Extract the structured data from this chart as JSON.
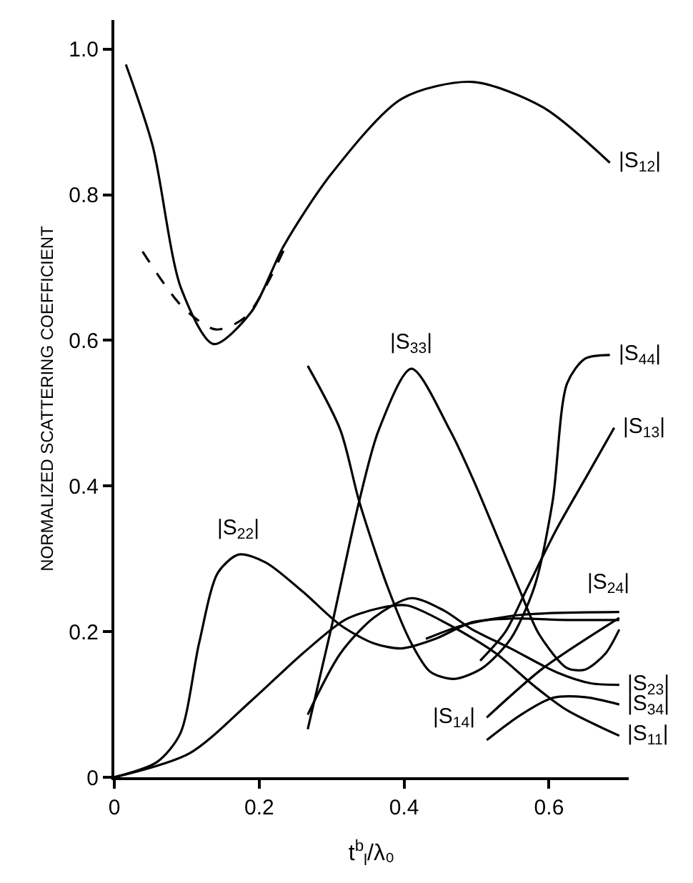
{
  "chart_data": {
    "type": "line",
    "xlabel": "t$^{b}$$_{l}$/λ₀",
    "ylabel": "NORMALIZED SCATTERING COEFFICIENT",
    "xlim": [
      0,
      0.71
    ],
    "ylim": [
      0,
      1.04
    ],
    "xticks": [
      0,
      0.2,
      0.4,
      0.6
    ],
    "yticks": [
      0,
      0.2,
      0.4,
      0.6,
      0.8,
      {
        "value": 1.0,
        "label": "1.0"
      }
    ],
    "legend": false,
    "marker": "none",
    "series": [
      {
        "name": "|S$_{12}$|",
        "color": "#000000",
        "x": [
          0.016,
          0.053,
          0.092,
          0.137,
          0.189,
          0.234,
          0.299,
          0.397,
          0.494,
          0.592,
          0.684
        ],
        "values": [
          0.979,
          0.867,
          0.672,
          0.595,
          0.639,
          0.73,
          0.828,
          0.932,
          0.955,
          0.92,
          0.844
        ]
      },
      {
        "color": "#000000",
        "line_style": "dashed",
        "x": [
          0.039,
          0.094,
          0.14,
          0.182,
          0.24
        ],
        "values": [
          0.722,
          0.646,
          0.615,
          0.633,
          0.737
        ]
      },
      {
        "name": "|S$_{22}$|",
        "color": "#000000",
        "x": [
          0,
          0.059,
          0.091,
          0.117,
          0.143,
          0.172,
          0.209,
          0.26,
          0.312,
          0.358,
          0.397,
          0.443,
          0.494,
          0.547,
          0.625,
          0.697
        ],
        "values": [
          0,
          0.021,
          0.06,
          0.184,
          0.281,
          0.306,
          0.295,
          0.255,
          0.209,
          0.184,
          0.177,
          0.19,
          0.213,
          0.218,
          0.216,
          0.216
        ]
      },
      {
        "name": "|S$_{11}$|",
        "color": "#000000",
        "x": [
          0,
          0.104,
          0.189,
          0.26,
          0.318,
          0.365,
          0.404,
          0.463,
          0.527,
          0.58,
          0.625,
          0.697
        ],
        "values": [
          0,
          0.033,
          0.105,
          0.17,
          0.216,
          0.232,
          0.236,
          0.209,
          0.17,
          0.125,
          0.092,
          0.057
        ]
      },
      {
        "name": "|S$_{23}$|",
        "color": "#000000",
        "x": [
          0.267,
          0.312,
          0.358,
          0.41,
          0.455,
          0.494,
          0.547,
          0.611,
          0.658,
          0.697
        ],
        "values": [
          0.086,
          0.17,
          0.219,
          0.246,
          0.229,
          0.203,
          0.177,
          0.144,
          0.129,
          0.127
        ]
      },
      {
        "name": "|S$_{24}$|",
        "color": "#000000",
        "x": [
          0.43,
          0.482,
          0.56,
          0.697
        ],
        "values": [
          0.19,
          0.209,
          0.223,
          0.227
        ]
      },
      {
        "name": "|S$_{33}$|",
        "color": "#000000",
        "x": [
          0.267,
          0.299,
          0.338,
          0.365,
          0.41,
          0.463,
          0.494,
          0.533,
          0.56,
          0.586,
          0.625,
          0.65,
          0.678,
          0.697
        ],
        "values": [
          0.066,
          0.203,
          0.379,
          0.477,
          0.561,
          0.477,
          0.412,
          0.32,
          0.256,
          0.197,
          0.15,
          0.148,
          0.17,
          0.203
        ]
      },
      {
        "name": "|S$_{44}$|",
        "color": "#000000",
        "x": [
          0.267,
          0.312,
          0.338,
          0.377,
          0.41,
          0.436,
          0.469,
          0.508,
          0.547,
          0.58,
          0.605,
          0.625,
          0.65,
          0.684
        ],
        "values": [
          0.565,
          0.477,
          0.379,
          0.262,
          0.184,
          0.145,
          0.135,
          0.15,
          0.19,
          0.262,
          0.379,
          0.541,
          0.575,
          0.58
        ]
      },
      {
        "name": "|S$_{13}$|",
        "color": "#000000",
        "x": [
          0.505,
          0.54,
          0.57,
          0.61,
          0.65,
          0.69
        ],
        "values": [
          0.16,
          0.2,
          0.26,
          0.34,
          0.41,
          0.48
        ]
      },
      {
        "name": "|S$_{14}$|",
        "color": "#000000",
        "x": [
          0.514,
          0.592,
          0.697
        ],
        "values": [
          0.082,
          0.15,
          0.219
        ]
      },
      {
        "name": "|S$_{34}$|",
        "color": "#000000",
        "x": [
          0.514,
          0.56,
          0.605,
          0.65,
          0.697
        ],
        "values": [
          0.051,
          0.085,
          0.109,
          0.11,
          0.1
        ]
      }
    ]
  }
}
